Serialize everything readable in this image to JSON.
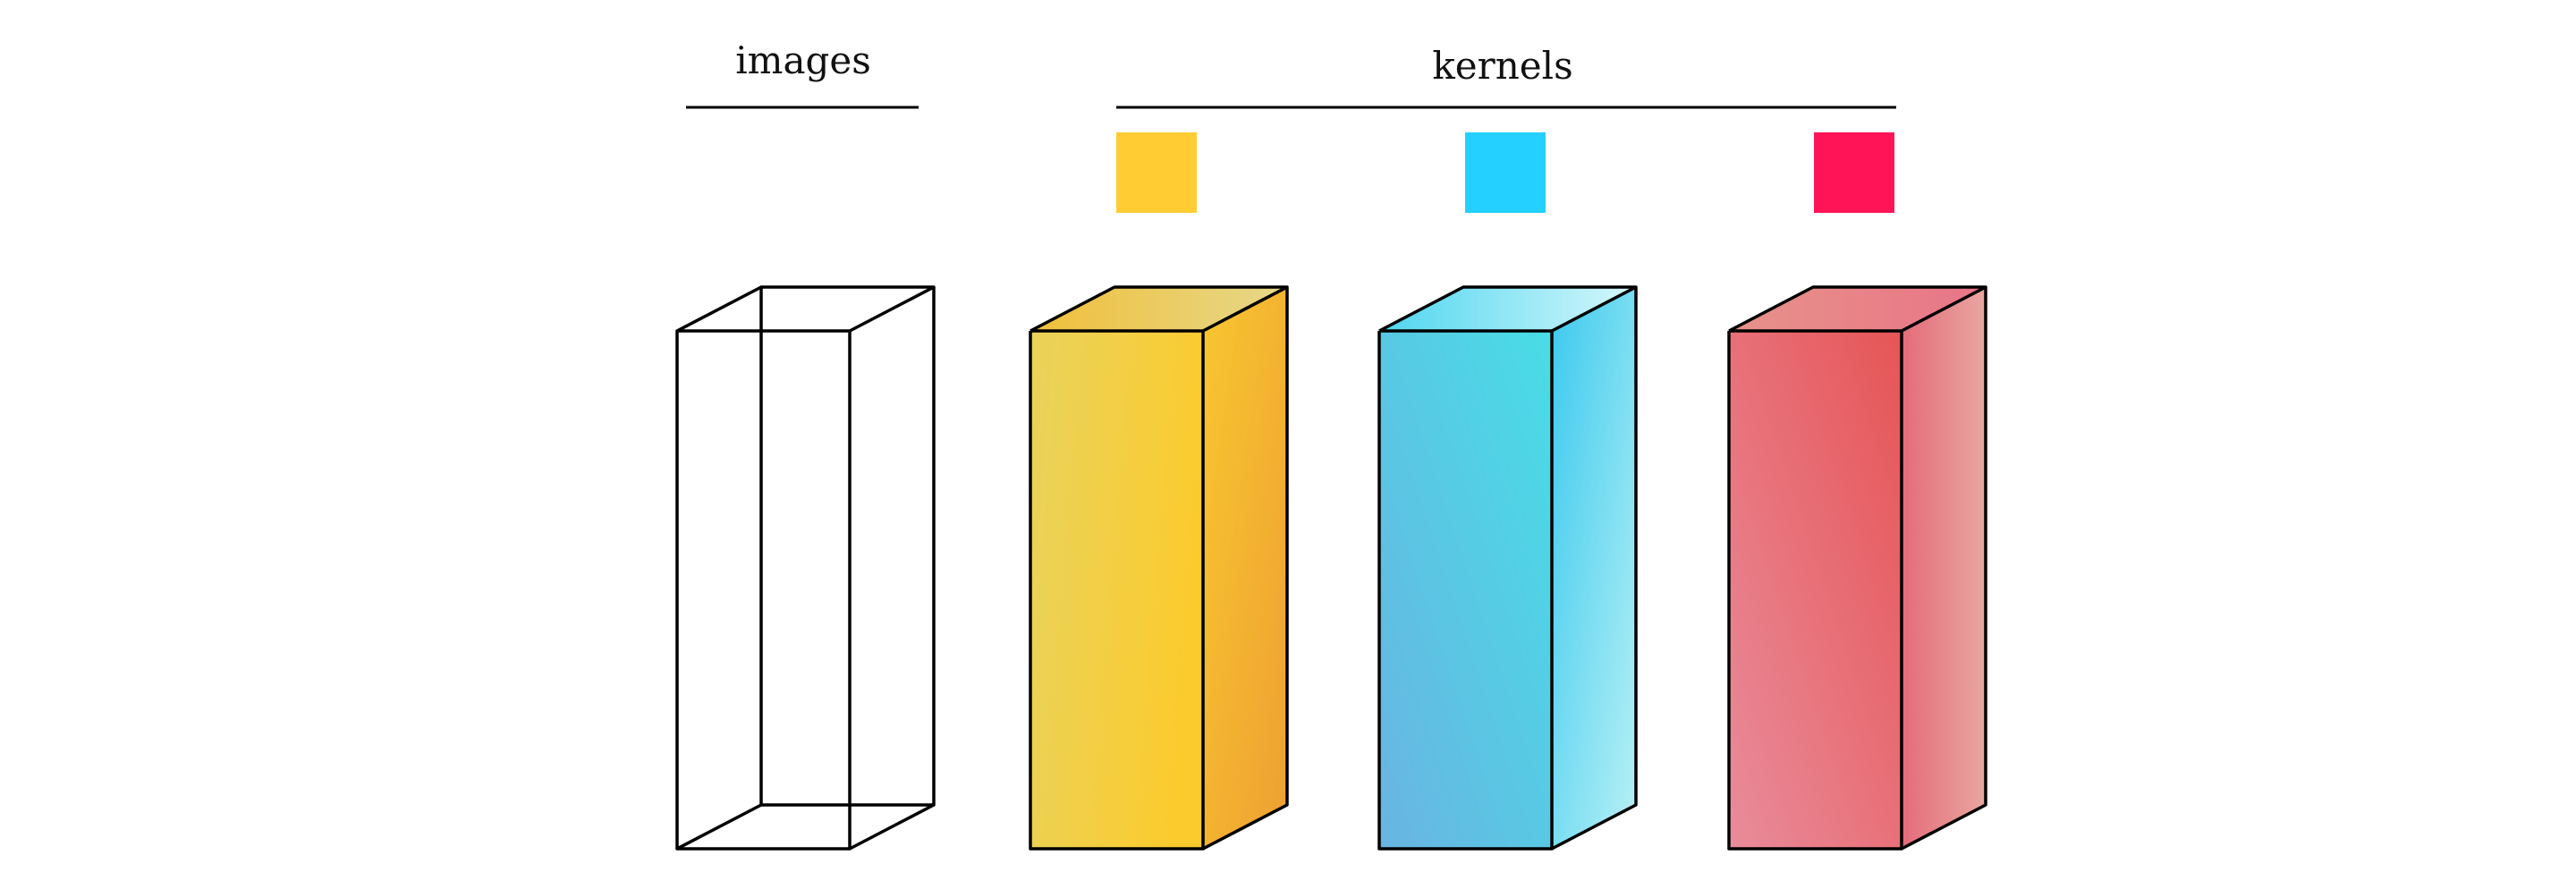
{
  "labels": {
    "images": "images",
    "kernels": "kernels"
  },
  "colors": {
    "line": "#000000",
    "kernels": [
      "#FFCD33",
      "#24D0FF",
      "#FF1458"
    ],
    "yellow_faces": {
      "front": [
        "#E9D35C",
        "#FBCB2E"
      ],
      "side": [
        "#F8C630",
        "#EEA032"
      ],
      "top": [
        "#F0BF3A",
        "#E6D88A"
      ]
    },
    "cyan_faces": {
      "front": [
        "#69B4E2",
        "#48DDE6"
      ],
      "side": [
        "#3BC9EE",
        "#B8F1F5"
      ],
      "top": [
        "#4FD6F0",
        "#D6F7FB"
      ]
    },
    "red_faces": {
      "front": [
        "#E98C9B",
        "#E65556"
      ],
      "side": [
        "#E56B7A",
        "#E8A7A0"
      ],
      "top": [
        "#E7928A",
        "#E87587"
      ]
    }
  }
}
